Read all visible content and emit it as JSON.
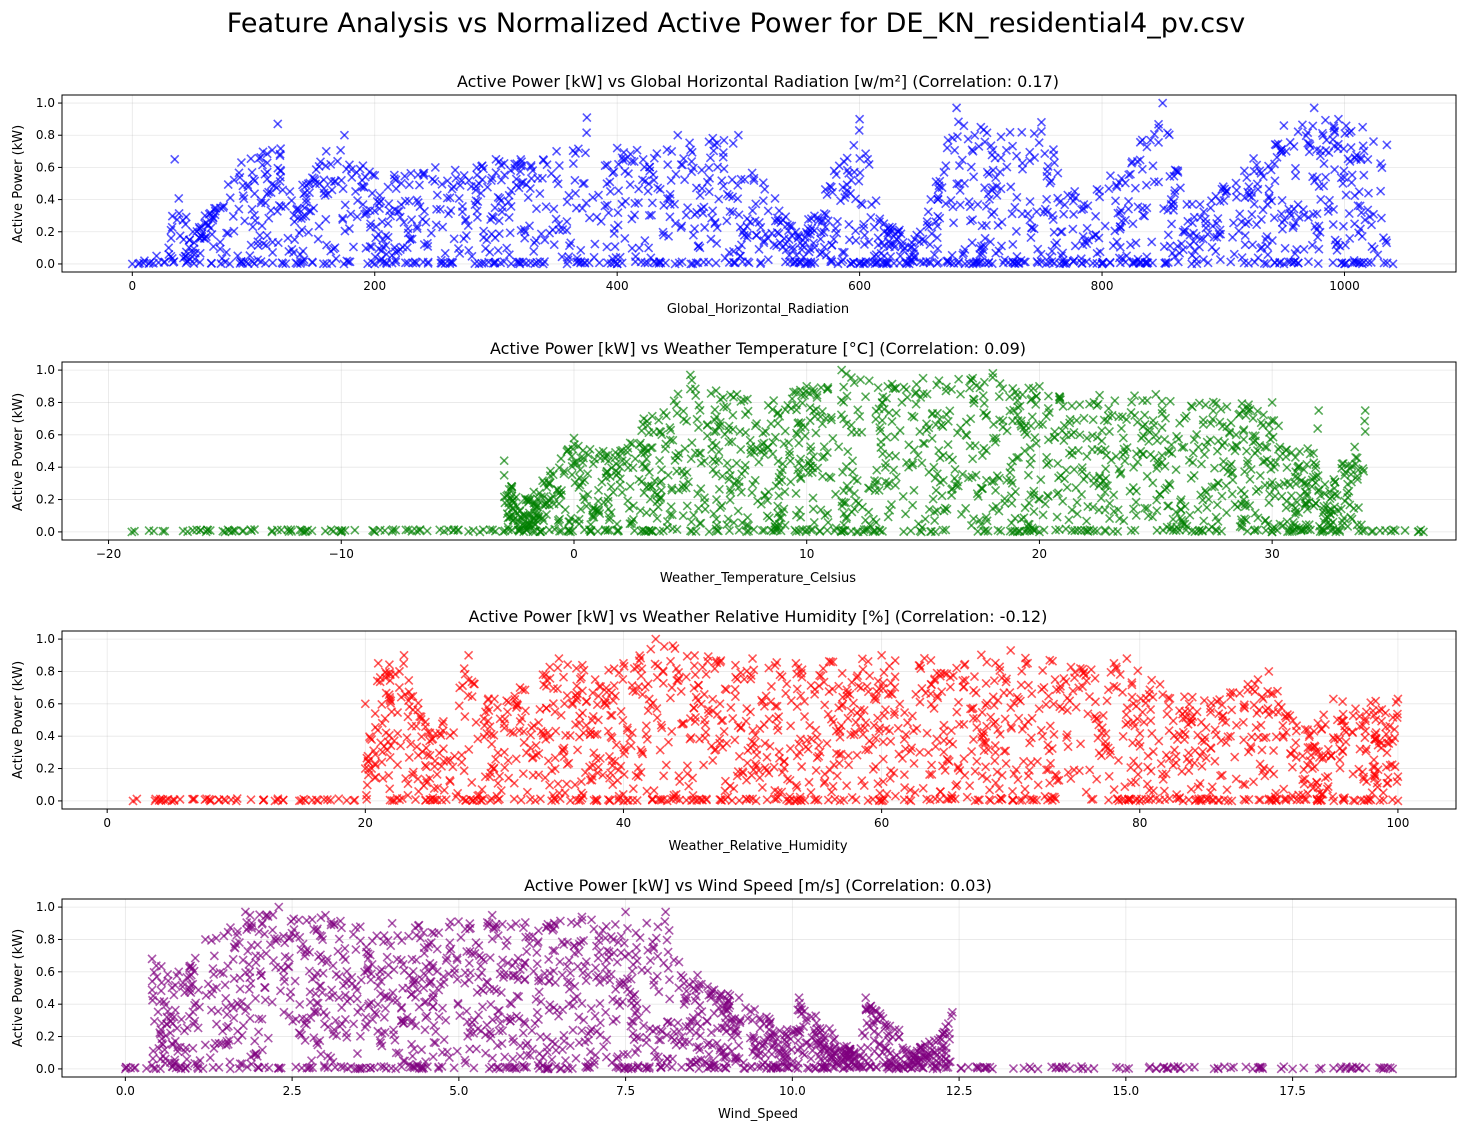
{
  "figure": {
    "suptitle": "Feature Analysis vs Normalized Active Power for DE_KN_residential4_pv.csv"
  },
  "chart_data": [
    {
      "type": "scatter",
      "title": "Active Power [kW] vs Global Horizontal Radiation [w/m²] (Correlation: 0.17)",
      "xlabel": "Global_Horizontal_Radiation",
      "ylabel": "Active Power (kW)",
      "color": "#0000ff",
      "marker": "x",
      "xlim": [
        -58,
        1092
      ],
      "ylim": [
        -0.05,
        1.05
      ],
      "xticks": [
        0,
        200,
        400,
        600,
        800,
        1000
      ],
      "xtick_labels": [
        "0",
        "200",
        "400",
        "600",
        "800",
        "1000"
      ],
      "yticks": [
        0.0,
        0.2,
        0.4,
        0.6,
        0.8,
        1.0
      ],
      "ytick_labels": [
        "0.0",
        "0.2",
        "0.4",
        "0.6",
        "0.8",
        "1.0"
      ],
      "grid": true,
      "points": [
        [
          0,
          0.0
        ],
        [
          5,
          0.0
        ],
        [
          10,
          0.02
        ],
        [
          20,
          0.05
        ],
        [
          30,
          0.1
        ],
        [
          35,
          0.65
        ],
        [
          50,
          0.2
        ],
        [
          60,
          0.3
        ],
        [
          90,
          0.63
        ],
        [
          120,
          0.87
        ],
        [
          130,
          0.45
        ],
        [
          160,
          0.7
        ],
        [
          175,
          0.8
        ],
        [
          200,
          0.55
        ],
        [
          250,
          0.6
        ],
        [
          300,
          0.65
        ],
        [
          350,
          0.7
        ],
        [
          375,
          0.91
        ],
        [
          400,
          0.72
        ],
        [
          450,
          0.8
        ],
        [
          500,
          0.8
        ],
        [
          550,
          0.17
        ],
        [
          600,
          0.9
        ],
        [
          620,
          0.25
        ],
        [
          650,
          0.2
        ],
        [
          680,
          0.97
        ],
        [
          700,
          0.85
        ],
        [
          750,
          0.88
        ],
        [
          785,
          0.37
        ],
        [
          850,
          1.0
        ],
        [
          870,
          0.37
        ],
        [
          900,
          0.48
        ],
        [
          950,
          0.86
        ],
        [
          975,
          0.97
        ],
        [
          995,
          0.9
        ],
        [
          1015,
          0.85
        ],
        [
          1035,
          0.74
        ],
        [
          1040,
          0.0
        ],
        [
          1000,
          0.0
        ],
        [
          950,
          0.0
        ],
        [
          800,
          0.0
        ],
        [
          600,
          0.0
        ],
        [
          400,
          0.0
        ],
        [
          200,
          0.0
        ]
      ]
    },
    {
      "type": "scatter",
      "title": "Active Power [kW] vs Weather Temperature [°C] (Correlation: 0.09)",
      "xlabel": "Weather_Temperature_Celsius",
      "ylabel": "Active Power (kW)",
      "color": "#008000",
      "marker": "x",
      "xlim": [
        -22,
        37.9
      ],
      "ylim": [
        -0.05,
        1.05
      ],
      "xticks": [
        -20,
        -10,
        0,
        10,
        20,
        30
      ],
      "xtick_labels": [
        "−20",
        "−10",
        "0",
        "10",
        "20",
        "30"
      ],
      "yticks": [
        0.0,
        0.2,
        0.4,
        0.6,
        0.8,
        1.0
      ],
      "ytick_labels": [
        "0.0",
        "0.2",
        "0.4",
        "0.6",
        "0.8",
        "1.0"
      ],
      "grid": true,
      "points": [
        [
          -19,
          0.0
        ],
        [
          -15,
          0.0
        ],
        [
          -10,
          0.0
        ],
        [
          -5,
          0.01
        ],
        [
          -3,
          0.44
        ],
        [
          -3,
          0.35
        ],
        [
          -2,
          0.2
        ],
        [
          0,
          0.58
        ],
        [
          2,
          0.5
        ],
        [
          3,
          0.7
        ],
        [
          5,
          0.97
        ],
        [
          7,
          0.85
        ],
        [
          10,
          0.9
        ],
        [
          11.5,
          1.0
        ],
        [
          15,
          0.95
        ],
        [
          18,
          0.98
        ],
        [
          20,
          0.9
        ],
        [
          25,
          0.85
        ],
        [
          30,
          0.8
        ],
        [
          32,
          0.75
        ],
        [
          34,
          0.75
        ],
        [
          34,
          0.62
        ],
        [
          33,
          0.42
        ],
        [
          31,
          0.46
        ],
        [
          32,
          0.26
        ],
        [
          36.5,
          0.0
        ],
        [
          30,
          0.0
        ],
        [
          20,
          0.0
        ]
      ]
    },
    {
      "type": "scatter",
      "title": "Active Power [kW] vs Weather Relative Humidity [%] (Correlation: -0.12)",
      "xlabel": "Weather_Relative_Humidity",
      "ylabel": "Active Power (kW)",
      "color": "#ff0000",
      "marker": "x",
      "xlim": [
        -3.5,
        104.5
      ],
      "ylim": [
        -0.05,
        1.05
      ],
      "xticks": [
        0,
        20,
        40,
        60,
        80,
        100
      ],
      "xtick_labels": [
        "0",
        "20",
        "40",
        "60",
        "80",
        "100"
      ],
      "yticks": [
        0.0,
        0.2,
        0.4,
        0.6,
        0.8,
        1.0
      ],
      "ytick_labels": [
        "0.0",
        "0.2",
        "0.4",
        "0.6",
        "0.8",
        "1.0"
      ],
      "grid": true,
      "points": [
        [
          2,
          0.0
        ],
        [
          5,
          0.0
        ],
        [
          8,
          0.0
        ],
        [
          10,
          0.0
        ],
        [
          13,
          0.0
        ],
        [
          20,
          0.6
        ],
        [
          20,
          0.2
        ],
        [
          21,
          0.85
        ],
        [
          23,
          0.9
        ],
        [
          25,
          0.42
        ],
        [
          28,
          0.9
        ],
        [
          30,
          0.63
        ],
        [
          35,
          0.88
        ],
        [
          40,
          0.85
        ],
        [
          42.5,
          1.0
        ],
        [
          50,
          0.88
        ],
        [
          60,
          0.9
        ],
        [
          70,
          0.93
        ],
        [
          78,
          0.85
        ],
        [
          79,
          0.88
        ],
        [
          85,
          0.62
        ],
        [
          90,
          0.8
        ],
        [
          93,
          0.44
        ],
        [
          95,
          0.63
        ],
        [
          100,
          0.63
        ],
        [
          100,
          0.15
        ],
        [
          100,
          0.0
        ],
        [
          80,
          0.0
        ],
        [
          60,
          0.0
        ],
        [
          40,
          0.0
        ]
      ]
    },
    {
      "type": "scatter",
      "title": "Active Power [kW] vs Wind Speed [m/s] (Correlation: 0.03)",
      "xlabel": "Wind_Speed",
      "ylabel": "Active Power (kW)",
      "color": "#800080",
      "marker": "x",
      "xlim": [
        -0.95,
        19.95
      ],
      "ylim": [
        -0.05,
        1.05
      ],
      "xticks": [
        0.0,
        2.5,
        5.0,
        7.5,
        10.0,
        12.5,
        15.0,
        17.5
      ],
      "xtick_labels": [
        "0.0",
        "2.5",
        "5.0",
        "7.5",
        "10.0",
        "12.5",
        "15.0",
        "17.5"
      ],
      "yticks": [
        0.0,
        0.2,
        0.4,
        0.6,
        0.8,
        1.0
      ],
      "ytick_labels": [
        "0.0",
        "0.2",
        "0.4",
        "0.6",
        "0.8",
        "1.0"
      ],
      "grid": true,
      "points": [
        [
          0,
          0.0
        ],
        [
          0.4,
          0.68
        ],
        [
          0.8,
          0.6
        ],
        [
          1.2,
          0.8
        ],
        [
          1.8,
          0.97
        ],
        [
          2.3,
          1.0
        ],
        [
          3,
          0.95
        ],
        [
          4,
          0.9
        ],
        [
          5.5,
          0.95
        ],
        [
          7.5,
          0.97
        ],
        [
          8.1,
          0.97
        ],
        [
          8.3,
          0.66
        ],
        [
          9.2,
          0.44
        ],
        [
          10,
          0.23
        ],
        [
          10.1,
          0.44
        ],
        [
          11,
          0.08
        ],
        [
          11.1,
          0.44
        ],
        [
          11.6,
          0.24
        ],
        [
          11.8,
          0.1
        ],
        [
          12.4,
          0.35
        ],
        [
          12.3,
          0.26
        ],
        [
          13,
          0.0
        ],
        [
          15,
          0.0
        ],
        [
          17.5,
          0.0
        ],
        [
          17.9,
          0.0
        ],
        [
          19,
          0.0
        ]
      ]
    }
  ]
}
